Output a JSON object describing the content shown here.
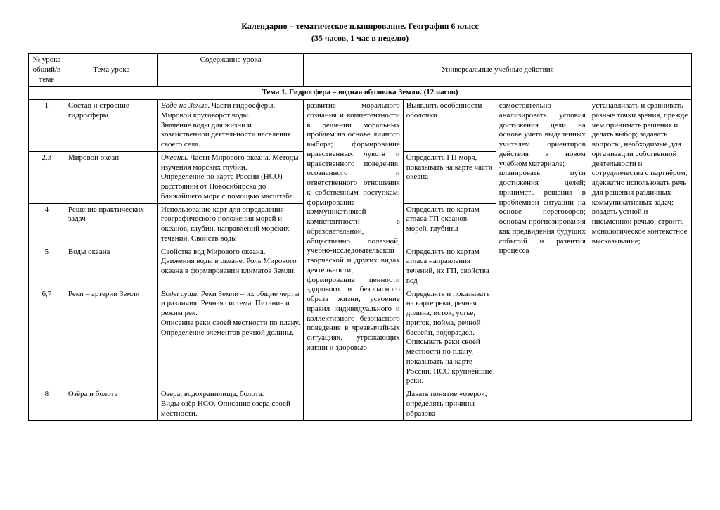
{
  "title": "Календарно – тематическое планирование. География 6 класс",
  "subtitle": "(35 часов, 1 час в неделю)",
  "header": {
    "num": "№ урока общий/в теме",
    "topic": "Тема урока",
    "content": "Содержание урока",
    "uud": "Универсальные учебные действия"
  },
  "section": "Тема 1. Гидросфера – водная оболочка Земли. (12 часов)",
  "rows": [
    {
      "num": "1",
      "topic": "Состав и строение гидросферы",
      "content_i": "Вода на Земле.",
      "content": " Части гидросферы. Мировой круговорот воды.\nЗначение воды для жизни и хозяйственной деятельности населения своего села.",
      "c5": "Выявлять особенности оболочки"
    },
    {
      "num": "2,3",
      "topic": "Мировой океан",
      "content_i": "Океаны.",
      "content": " Части Мирового океана. Методы изучения морских глубин.\nОпределение по карте России (НСО) расстояний от Новосибирска до ближайшего моря с помощью масштаба.",
      "c5": "Определять ГП моря, показывать на карте части океана"
    },
    {
      "num": "4",
      "topic": "Решение практических задач",
      "content_i": "",
      "content": "Использование карт для определения географического положения морей и океанов, глубин, направлений морских течений.  Свойств воды",
      "c5": "Определять по картам атласа ГП океанов, морей, глубины"
    },
    {
      "num": "5",
      "topic": "Воды океана",
      "content_i": "",
      "content": "Свойства вод Мирового океана. Движения воды в океане. Роль Мирового океана в формировании климатов Земли.",
      "c5": "Определять по картам атласа направления течений,  их ГП, свойства вод"
    },
    {
      "num": "6,7",
      "topic": "Реки – артерии Земли",
      "content_i": "Воды суши.",
      "content": " Реки Земли – их общие черты и различия. Речная система.  Питание и режим рек.\nОписание реки своей местности по плану. Определение элементов речной долины.",
      "c5": "Определять и показывать на карте реки, речная долина, исток, устье, приток, пойма, речной бассейн, водораздел.\nОписывать реки своей местности по плану, показывать на карте России, НСО крупнейшие реки."
    },
    {
      "num": "8",
      "topic": "Озёра и болота",
      "content_i": "",
      "content": "Озера, водохранилища, болота.\nВиды озёр НСО. Описание озера своей местности.",
      "c5": "Давать понятие «озеро», определять причины образова-"
    }
  ],
  "col4": "развитие морального сознания и компетентности в решении моральных проблем на основе личного выбора; формирование нравственных чувств и нравственного поведения, осознанного и ответственного отношения к собственным поступкам; формирование коммуникативной компетентности в образовательной, общественно полезной, учебно-исследовательской творческой и других видах деятельности;\nформирование ценности здорового и безопасного образа жизни, усвоение правил индивидуального и коллективного безопасного поведения в чрезвычайных ситуациях, угрожающих жизни и здоровью",
  "col6": "самостоятельно анализировать условия достижения цели на основе учёта выделенных учителем ориентиров действия в новом учебном материале;\nпланировать пути достижения целей; принимать решения в проблемной ситуации на основе переговоров; основам прогнозирования как предвидения будущих событий и развития процесса",
  "col7": "устанавливать и сравнивать разные точки зрения, прежде чем принимать решения и делать выбор; задавать вопросы, необходимые для организации собственной деятельности и сотрудничества с партнёром, адекватно использовать речь для решения различных коммуникативных задач; владеть устной и письменной речью; строить монологическое контекстное высказывание;"
}
